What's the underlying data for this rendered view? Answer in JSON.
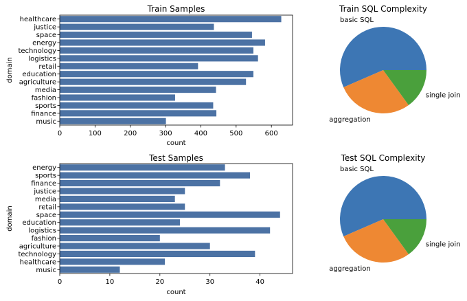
{
  "chart_data": [
    {
      "type": "bar",
      "orientation": "horizontal",
      "title": "Train Samples",
      "xlabel": "count",
      "ylabel": "domain",
      "xlim": [
        0,
        660
      ],
      "xticks": [
        0,
        100,
        200,
        300,
        400,
        500,
        600
      ],
      "color": "#4c72a4",
      "categories": [
        "healthcare",
        "justice",
        "space",
        "energy",
        "technology",
        "logistics",
        "retail",
        "education",
        "agriculture",
        "media",
        "fashion",
        "sports",
        "finance",
        "music"
      ],
      "values": [
        628,
        437,
        545,
        582,
        549,
        562,
        392,
        549,
        528,
        443,
        327,
        435,
        444,
        301
      ]
    },
    {
      "type": "pie",
      "title": "Train SQL Complexity",
      "labels": [
        "basic SQL",
        "aggregation",
        "single join"
      ],
      "values": [
        56.5,
        28.5,
        15
      ],
      "colors": [
        "#3d76b4",
        "#ee8833",
        "#4aa03c"
      ]
    },
    {
      "type": "bar",
      "orientation": "horizontal",
      "title": "Test Samples",
      "xlabel": "count",
      "ylabel": "domain",
      "xlim": [
        0,
        46.5
      ],
      "xticks": [
        0,
        10,
        20,
        30,
        40
      ],
      "color": "#4c72a4",
      "categories": [
        "energy",
        "sports",
        "finance",
        "justice",
        "media",
        "retail",
        "space",
        "education",
        "logistics",
        "fashion",
        "agriculture",
        "technology",
        "healthcare",
        "music"
      ],
      "values": [
        33,
        38,
        32,
        25,
        23,
        25,
        44,
        24,
        42,
        20,
        30,
        39,
        21,
        12
      ]
    },
    {
      "type": "pie",
      "title": "Test SQL Complexity",
      "labels": [
        "basic SQL",
        "aggregation",
        "single join"
      ],
      "values": [
        56.5,
        28.5,
        15
      ],
      "colors": [
        "#3d76b4",
        "#ee8833",
        "#4aa03c"
      ]
    }
  ]
}
